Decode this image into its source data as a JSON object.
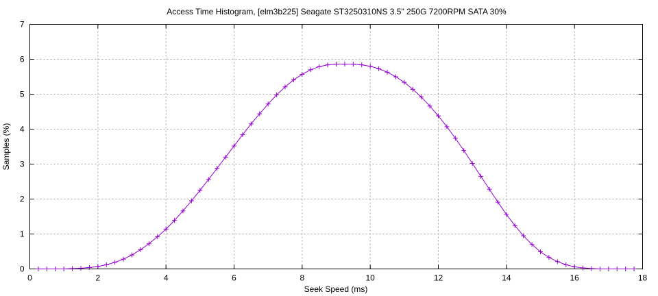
{
  "chart_data": {
    "type": "line",
    "title": "Access Time Histogram, [elm3b225] Seagate ST3250310NS 3.5\" 250G 7200RPM SATA 30%",
    "xlabel": "Seek Speed (ms)",
    "ylabel": "Samples (%)",
    "xlim": [
      0,
      18
    ],
    "ylim": [
      0,
      7
    ],
    "xticks": [
      "0",
      "2",
      "4",
      "6",
      "8",
      "10",
      "12",
      "14",
      "16",
      "18"
    ],
    "yticks": [
      "0",
      "1",
      "2",
      "3",
      "4",
      "5",
      "6",
      "7"
    ],
    "grid": true,
    "marker": "plus",
    "colors": {
      "series": "#9400d3"
    },
    "series": [
      {
        "x": [
          0.25,
          0.5,
          0.75,
          1.0,
          1.25,
          1.5,
          1.75,
          2.0,
          2.25,
          2.5,
          2.75,
          3.0,
          3.25,
          3.5,
          3.75,
          4.0,
          4.25,
          4.5,
          4.75,
          5.0,
          5.25,
          5.5,
          5.75,
          6.0,
          6.25,
          6.5,
          6.75,
          7.0,
          7.25,
          7.5,
          7.75,
          8.0,
          8.25,
          8.5,
          8.75,
          9.0,
          9.25,
          9.5,
          9.75,
          10.0,
          10.25,
          10.5,
          10.75,
          11.0,
          11.25,
          11.5,
          11.75,
          12.0,
          12.25,
          12.5,
          12.75,
          13.0,
          13.25,
          13.5,
          13.75,
          14.0,
          14.25,
          14.5,
          14.75,
          15.0,
          15.25,
          15.5,
          15.75,
          16.0,
          16.25,
          16.5,
          16.75,
          17.0,
          17.25,
          17.5,
          17.75
        ],
        "y": [
          0.0,
          0.0,
          0.0,
          0.0,
          0.01,
          0.02,
          0.04,
          0.07,
          0.12,
          0.19,
          0.28,
          0.4,
          0.55,
          0.72,
          0.92,
          1.14,
          1.39,
          1.66,
          1.95,
          2.25,
          2.56,
          2.88,
          3.2,
          3.52,
          3.84,
          4.15,
          4.44,
          4.72,
          4.98,
          5.21,
          5.41,
          5.57,
          5.7,
          5.79,
          5.84,
          5.86,
          5.86,
          5.86,
          5.84,
          5.8,
          5.73,
          5.63,
          5.5,
          5.34,
          5.14,
          4.92,
          4.66,
          4.38,
          4.07,
          3.74,
          3.39,
          3.02,
          2.65,
          2.28,
          1.91,
          1.56,
          1.24,
          0.95,
          0.7,
          0.49,
          0.33,
          0.21,
          0.12,
          0.06,
          0.03,
          0.01,
          0.0,
          0.0,
          0.0,
          0.0,
          0.0
        ]
      }
    ]
  }
}
